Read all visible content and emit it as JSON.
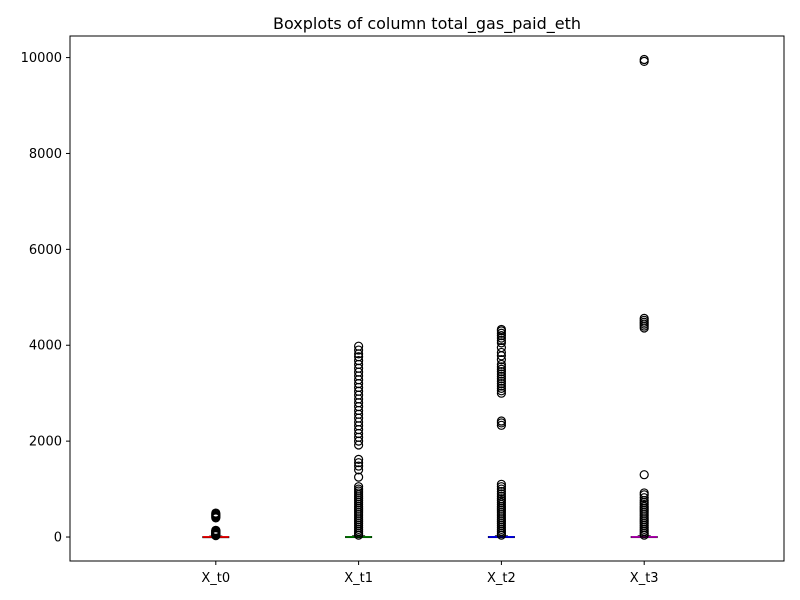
{
  "chart_data": {
    "type": "boxplot",
    "title": "Boxplots of column total_gas_paid_eth",
    "xlabel": "",
    "ylabel": "",
    "categories": [
      "X_t0",
      "X_t1",
      "X_t2",
      "X_t3"
    ],
    "ylim": [
      -500,
      10450
    ],
    "yticks": [
      0,
      2000,
      4000,
      6000,
      8000,
      10000
    ],
    "grid": false,
    "legend": "none",
    "colors": {
      "X_t0": "#ff0000",
      "X_t1": "#008000",
      "X_t2": "#0000ff",
      "X_t3": "#bf00bf"
    },
    "boxes": [
      {
        "category": "X_t0",
        "q1": 0,
        "median": 2,
        "q3": 8,
        "whisker_low": 0,
        "whisker_high": 20,
        "outliers": [
          30,
          40,
          50,
          60,
          70,
          80,
          90,
          100,
          110,
          120,
          130,
          140,
          400,
          420,
          440,
          460,
          480,
          500
        ]
      },
      {
        "category": "X_t1",
        "q1": 0,
        "median": 2,
        "q3": 10,
        "whisker_low": 0,
        "whisker_high": 25,
        "outliers": [
          40,
          80,
          120,
          160,
          200,
          240,
          280,
          320,
          360,
          400,
          440,
          480,
          520,
          560,
          600,
          640,
          680,
          720,
          760,
          800,
          840,
          880,
          920,
          960,
          1000,
          1050,
          1250,
          1400,
          1480,
          1550,
          1620,
          1920,
          2000,
          2080,
          2160,
          2240,
          2320,
          2400,
          2480,
          2560,
          2640,
          2720,
          2800,
          2880,
          2960,
          3040,
          3120,
          3200,
          3280,
          3360,
          3440,
          3520,
          3600,
          3680,
          3760,
          3820,
          3900,
          3980
        ]
      },
      {
        "category": "X_t2",
        "q1": 0,
        "median": 2,
        "q3": 10,
        "whisker_low": 0,
        "whisker_high": 25,
        "outliers": [
          40,
          80,
          120,
          160,
          200,
          240,
          280,
          320,
          360,
          400,
          440,
          480,
          520,
          560,
          600,
          640,
          680,
          720,
          760,
          800,
          850,
          900,
          950,
          1000,
          1050,
          1100,
          2330,
          2380,
          2420,
          3000,
          3050,
          3100,
          3150,
          3200,
          3250,
          3300,
          3350,
          3400,
          3450,
          3500,
          3550,
          3600,
          3700,
          3780,
          3850,
          3950,
          4050,
          4100,
          4150,
          4200,
          4250,
          4300,
          4330
        ]
      },
      {
        "category": "X_t3",
        "q1": 0,
        "median": 2,
        "q3": 10,
        "whisker_low": 0,
        "whisker_high": 25,
        "outliers": [
          40,
          80,
          120,
          160,
          200,
          240,
          280,
          320,
          360,
          400,
          440,
          480,
          520,
          560,
          600,
          640,
          680,
          720,
          760,
          820,
          880,
          920,
          1300,
          4360,
          4400,
          4440,
          4480,
          4520,
          4560,
          9920,
          9960
        ]
      }
    ]
  }
}
